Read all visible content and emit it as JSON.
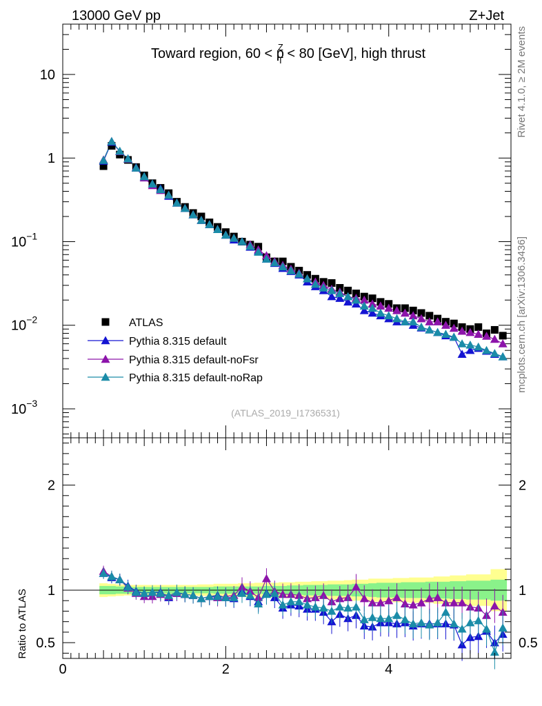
{
  "header": {
    "left_label": "13000 GeV pp",
    "right_label": "Z+Jet",
    "side_label_top": "Rivet 4.1.0, ≥ 2M events",
    "side_label_bottom": "mcplots.cern.ch [arXiv:1306.3436]",
    "watermark": "(ATLAS_2019_I1736531)"
  },
  "chart_data": [
    {
      "type": "scatter",
      "panel": "main",
      "title": {
        "prefix": "Toward region, 60 < p",
        "sup": "Z",
        "sub": "T",
        "suffix": " < 80 [GeV], high thrust"
      },
      "xlim": [
        0,
        5.5
      ],
      "ylim": [
        0.00045,
        40
      ],
      "yscale": "log",
      "y_tick_labels": [
        {
          "value": 10,
          "base": "10",
          "exp": ""
        },
        {
          "value": 1,
          "base": "1",
          "exp": ""
        },
        {
          "value": 0.1,
          "base": "10",
          "exp": "−1"
        },
        {
          "value": 0.01,
          "base": "10",
          "exp": "−2"
        },
        {
          "value": 0.001,
          "base": "10",
          "exp": "−3"
        }
      ],
      "x": [
        0.5,
        0.6,
        0.7,
        0.8,
        0.9,
        1.0,
        1.1,
        1.2,
        1.3,
        1.4,
        1.5,
        1.6,
        1.7,
        1.8,
        1.9,
        2.0,
        2.1,
        2.2,
        2.3,
        2.4,
        2.5,
        2.6,
        2.7,
        2.8,
        2.9,
        3.0,
        3.1,
        3.2,
        3.3,
        3.4,
        3.5,
        3.6,
        3.7,
        3.8,
        3.9,
        4.0,
        4.1,
        4.2,
        4.3,
        4.4,
        4.5,
        4.6,
        4.7,
        4.8,
        4.9,
        5.0,
        5.1,
        5.2,
        5.3,
        5.4
      ],
      "legend_position": "lower-left",
      "series": [
        {
          "name": "ATLAS",
          "marker": "square",
          "color": "#000000",
          "values": [
            0.8,
            1.4,
            1.1,
            0.95,
            0.78,
            0.62,
            0.5,
            0.44,
            0.38,
            0.3,
            0.26,
            0.22,
            0.2,
            0.17,
            0.15,
            0.13,
            0.115,
            0.1,
            0.092,
            0.087,
            0.065,
            0.058,
            0.058,
            0.05,
            0.045,
            0.04,
            0.036,
            0.033,
            0.032,
            0.028,
            0.026,
            0.024,
            0.022,
            0.021,
            0.019,
            0.018,
            0.016,
            0.016,
            0.015,
            0.014,
            0.013,
            0.012,
            0.011,
            0.0105,
            0.0095,
            0.009,
            0.0095,
            0.008,
            0.0088,
            0.0075
          ]
        },
        {
          "name": "Pythia 8.315 default",
          "marker": "triangle",
          "color": "#1414d2",
          "values": [
            0.92,
            1.55,
            1.2,
            0.98,
            0.77,
            0.6,
            0.49,
            0.43,
            0.35,
            0.29,
            0.25,
            0.21,
            0.18,
            0.16,
            0.14,
            0.12,
            0.105,
            0.1,
            0.086,
            0.077,
            0.062,
            0.055,
            0.048,
            0.044,
            0.04,
            0.033,
            0.029,
            0.026,
            0.022,
            0.021,
            0.019,
            0.018,
            0.015,
            0.014,
            0.013,
            0.012,
            0.011,
            0.011,
            0.01,
            0.0093,
            0.0088,
            0.0082,
            0.0075,
            0.0072,
            0.0045,
            0.005,
            0.0053,
            0.0049,
            0.0045,
            0.0042
          ]
        },
        {
          "name": "Pythia 8.315 default-noFsr",
          "marker": "triangle",
          "color": "#8c14aa",
          "values": [
            0.95,
            1.58,
            1.2,
            0.97,
            0.76,
            0.58,
            0.47,
            0.41,
            0.36,
            0.29,
            0.25,
            0.21,
            0.18,
            0.16,
            0.14,
            0.12,
            0.11,
            0.1,
            0.092,
            0.08,
            0.068,
            0.058,
            0.052,
            0.047,
            0.042,
            0.036,
            0.033,
            0.03,
            0.027,
            0.025,
            0.022,
            0.021,
            0.02,
            0.018,
            0.017,
            0.016,
            0.015,
            0.014,
            0.013,
            0.012,
            0.011,
            0.011,
            0.01,
            0.0092,
            0.0085,
            0.0082,
            0.0078,
            0.0074,
            0.0068,
            0.006
          ]
        },
        {
          "name": "Pythia 8.315 default-noRap",
          "marker": "triangle",
          "color": "#1a8ca8",
          "values": [
            0.94,
            1.58,
            1.21,
            0.98,
            0.76,
            0.6,
            0.49,
            0.42,
            0.36,
            0.29,
            0.25,
            0.21,
            0.18,
            0.16,
            0.14,
            0.12,
            0.11,
            0.1,
            0.088,
            0.075,
            0.062,
            0.056,
            0.05,
            0.045,
            0.041,
            0.036,
            0.031,
            0.028,
            0.026,
            0.024,
            0.022,
            0.02,
            0.017,
            0.016,
            0.014,
            0.013,
            0.012,
            0.011,
            0.011,
            0.0095,
            0.0088,
            0.0082,
            0.0078,
            0.0072,
            0.006,
            0.0058,
            0.0055,
            0.005,
            0.0046,
            0.0042
          ]
        }
      ]
    },
    {
      "type": "scatter",
      "panel": "ratio",
      "ylabel": "Ratio to ATLAS",
      "xlim": [
        0,
        5.5
      ],
      "ylim": [
        0.35,
        2.45
      ],
      "x_tick_labels": [
        "0",
        "2",
        "4"
      ],
      "x_tick_values": [
        0,
        2,
        4
      ],
      "y_tick_labels": [
        "2",
        "1",
        "0.5"
      ],
      "y_tick_values": [
        2,
        1,
        0.5
      ],
      "reference_line": 1,
      "x": [
        0.5,
        0.6,
        0.7,
        0.8,
        0.9,
        1.0,
        1.1,
        1.2,
        1.3,
        1.4,
        1.5,
        1.6,
        1.7,
        1.8,
        1.9,
        2.0,
        2.1,
        2.2,
        2.3,
        2.4,
        2.5,
        2.6,
        2.7,
        2.8,
        2.9,
        3.0,
        3.1,
        3.2,
        3.3,
        3.4,
        3.5,
        3.6,
        3.7,
        3.8,
        3.9,
        4.0,
        4.1,
        4.2,
        4.3,
        4.4,
        4.5,
        4.6,
        4.7,
        4.8,
        4.9,
        5.0,
        5.1,
        5.2,
        5.3,
        5.4
      ],
      "bands": {
        "stat_color": "#8af28a",
        "total_color": "#ffff90",
        "stat_halfwidth": [
          0.04,
          0.04,
          0.035,
          0.035,
          0.03,
          0.03,
          0.03,
          0.03,
          0.03,
          0.03,
          0.03,
          0.03,
          0.03,
          0.03,
          0.035,
          0.035,
          0.035,
          0.035,
          0.035,
          0.035,
          0.04,
          0.04,
          0.04,
          0.045,
          0.045,
          0.05,
          0.05,
          0.05,
          0.055,
          0.055,
          0.055,
          0.06,
          0.06,
          0.065,
          0.07,
          0.07,
          0.07,
          0.075,
          0.075,
          0.075,
          0.08,
          0.08,
          0.08,
          0.085,
          0.085,
          0.09,
          0.09,
          0.09,
          0.1,
          0.1
        ],
        "total_halfwidth": [
          0.065,
          0.06,
          0.055,
          0.05,
          0.05,
          0.05,
          0.05,
          0.05,
          0.05,
          0.05,
          0.05,
          0.05,
          0.055,
          0.055,
          0.06,
          0.06,
          0.06,
          0.065,
          0.065,
          0.07,
          0.07,
          0.07,
          0.075,
          0.075,
          0.08,
          0.08,
          0.085,
          0.085,
          0.09,
          0.09,
          0.095,
          0.1,
          0.1,
          0.11,
          0.11,
          0.11,
          0.115,
          0.115,
          0.12,
          0.12,
          0.12,
          0.13,
          0.13,
          0.14,
          0.14,
          0.15,
          0.15,
          0.15,
          0.2,
          0.2
        ]
      },
      "series": [
        {
          "name": "Pythia 8.315 default",
          "color": "#1414d2",
          "values": [
            1.16,
            1.12,
            1.1,
            1.04,
            0.99,
            0.97,
            0.98,
            0.98,
            0.93,
            0.97,
            0.96,
            0.95,
            0.92,
            0.94,
            0.95,
            0.93,
            0.92,
            0.99,
            0.94,
            0.89,
            0.97,
            0.93,
            0.83,
            0.86,
            0.85,
            0.82,
            0.82,
            0.79,
            0.7,
            0.77,
            0.73,
            0.76,
            0.66,
            0.65,
            0.69,
            0.69,
            0.68,
            0.69,
            0.66,
            0.68,
            0.68,
            0.68,
            0.68,
            0.67,
            0.48,
            0.55,
            0.56,
            0.61,
            0.5,
            0.58
          ]
        },
        {
          "name": "Pythia 8.315 default-noFsr",
          "color": "#8c14aa",
          "values": [
            1.18,
            1.13,
            1.1,
            1.02,
            0.97,
            0.94,
            0.94,
            0.96,
            0.94,
            0.97,
            0.96,
            0.95,
            0.92,
            0.94,
            0.93,
            0.94,
            0.95,
            1.03,
            0.99,
            0.93,
            1.11,
            0.99,
            0.96,
            0.96,
            0.95,
            0.92,
            0.93,
            0.95,
            0.89,
            0.92,
            0.93,
            1.03,
            0.92,
            0.88,
            0.88,
            0.9,
            0.93,
            0.87,
            0.86,
            0.88,
            0.92,
            0.93,
            0.88,
            0.88,
            0.88,
            0.84,
            0.83,
            0.76,
            0.85,
            0.79
          ]
        },
        {
          "name": "Pythia 8.315 default-noRap",
          "color": "#1a8ca8",
          "values": [
            1.16,
            1.13,
            1.1,
            1.03,
            0.98,
            0.97,
            0.98,
            0.97,
            0.95,
            0.98,
            0.96,
            0.95,
            0.92,
            0.94,
            0.94,
            0.93,
            0.93,
            0.97,
            0.95,
            0.87,
            0.96,
            0.97,
            0.86,
            0.89,
            0.89,
            0.86,
            0.84,
            0.83,
            0.8,
            0.84,
            0.83,
            0.84,
            0.72,
            0.74,
            0.73,
            0.73,
            0.76,
            0.72,
            0.68,
            0.69,
            0.67,
            0.69,
            0.79,
            0.68,
            0.63,
            0.69,
            0.71,
            0.63,
            0.41,
            0.64
          ]
        }
      ]
    }
  ]
}
